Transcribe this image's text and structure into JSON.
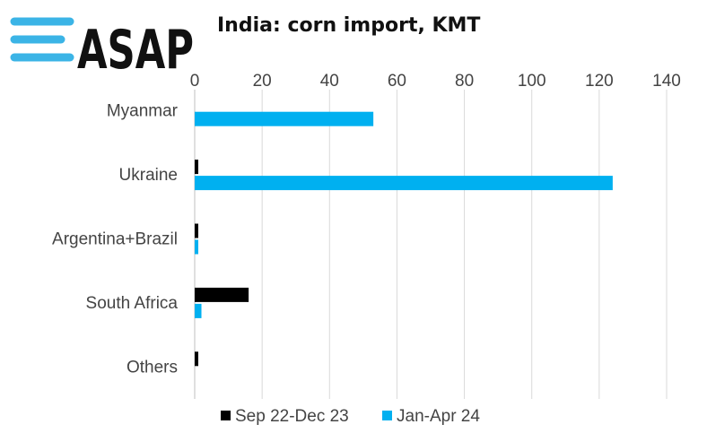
{
  "logo": {
    "text": "ASAP",
    "icon": "three-lines-logo-icon",
    "color": "#3bb4e6"
  },
  "chart_data": {
    "type": "bar",
    "orientation": "horizontal",
    "title": "India: corn import, KMT",
    "categories": [
      "Myanmar",
      "Ukraine",
      "Argentina+Brazil",
      "South Africa",
      "Others"
    ],
    "series": [
      {
        "name": "Sep 22-Dec 23",
        "color": "#000000",
        "values": [
          0,
          1,
          1,
          16,
          1
        ]
      },
      {
        "name": "Jan-Apr 24",
        "color": "#00b0f0",
        "values": [
          53,
          124,
          1,
          2,
          0
        ]
      }
    ],
    "xlim": [
      0,
      140
    ],
    "xticks": [
      0,
      20,
      40,
      60,
      80,
      100,
      120,
      140
    ],
    "xaxis_position": "top",
    "grid": true,
    "legend_position": "bottom"
  }
}
